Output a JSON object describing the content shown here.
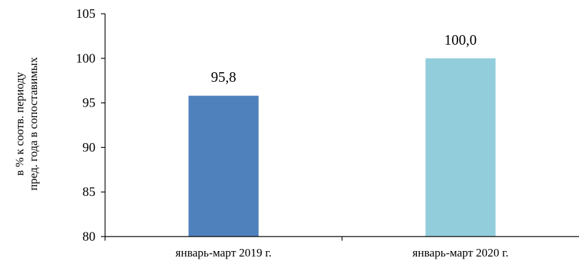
{
  "chart_data": {
    "type": "bar",
    "title": "",
    "xlabel": "",
    "ylabel_lines": [
      "в % к соотв. периоду",
      "пред. года в сопоставимых"
    ],
    "ylim": [
      80,
      105
    ],
    "yticks": [
      80,
      85,
      90,
      95,
      100,
      105
    ],
    "ytick_labels": [
      "80",
      "85",
      "90",
      "95",
      "100",
      "105"
    ],
    "categories": [
      "январь-март 2019 г.",
      "январь-март 2020 г."
    ],
    "values": [
      95.8,
      100.0
    ],
    "data_labels": [
      "95,8",
      "100,0"
    ],
    "bar_colors": [
      "#4f81bd",
      "#92cddc"
    ],
    "grid": false,
    "legend": false
  }
}
